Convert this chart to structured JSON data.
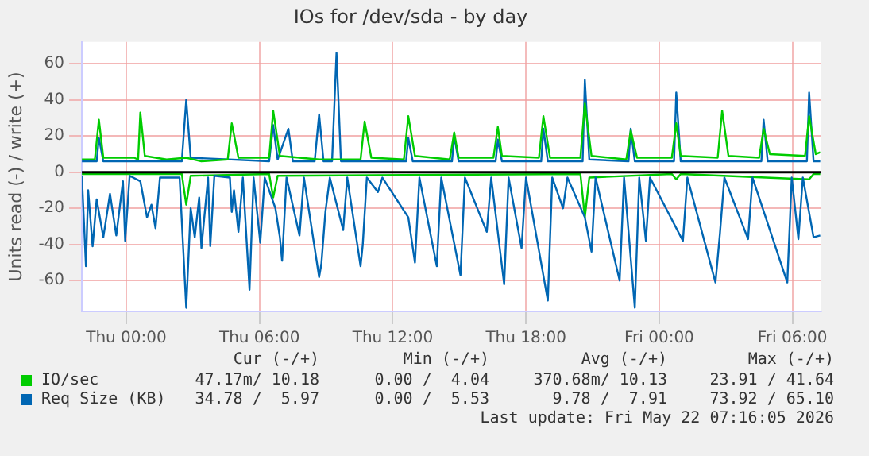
{
  "chart_data": {
    "type": "line",
    "title": "IOs for /dev/sda - by day",
    "ylabel": "Units read (-) / write (+)",
    "xlim": [
      "2026-05-20T22:00",
      "2026-05-22T07:18"
    ],
    "xticks": [
      {
        "value": "2026-05-21T00:00",
        "label": "Thu 00:00"
      },
      {
        "value": "2026-05-21T06:00",
        "label": "Thu 06:00"
      },
      {
        "value": "2026-05-21T12:00",
        "label": "Thu 12:00"
      },
      {
        "value": "2026-05-21T18:00",
        "label": "Thu 18:00"
      },
      {
        "value": "2026-05-22T00:00",
        "label": "Fri 00:00"
      },
      {
        "value": "2026-05-22T06:00",
        "label": "Fri 06:00"
      }
    ],
    "ylim": [
      -77,
      72
    ],
    "yticks": [
      -60,
      -40,
      -20,
      0,
      20,
      40,
      60
    ],
    "grid": true,
    "legend": "bottom",
    "marker": "none",
    "line_style": "solid",
    "ref_lines": [
      {
        "axis": "y",
        "value": 0,
        "color": "#000000"
      }
    ],
    "series": [
      {
        "name": "IO/sec",
        "color": "#00cc00",
        "x": [
          "2026-05-20T22:00",
          "2026-05-20T22:35",
          "2026-05-20T22:46",
          "2026-05-20T22:58",
          "2026-05-21T00:21",
          "2026-05-21T00:32",
          "2026-05-21T00:38",
          "2026-05-21T00:50",
          "2026-05-21T01:49",
          "2026-05-21T02:42",
          "2026-05-21T03:23",
          "2026-05-21T04:34",
          "2026-05-21T04:45",
          "2026-05-21T05:03",
          "2026-05-21T06:26",
          "2026-05-21T06:37",
          "2026-05-21T06:55",
          "2026-05-21T08:41",
          "2026-05-21T10:33",
          "2026-05-21T10:44",
          "2026-05-21T11:02",
          "2026-05-21T12:30",
          "2026-05-21T12:42",
          "2026-05-21T13:00",
          "2026-05-21T14:34",
          "2026-05-21T14:46",
          "2026-05-21T14:58",
          "2026-05-21T16:32",
          "2026-05-21T16:44",
          "2026-05-21T16:55",
          "2026-05-21T18:35",
          "2026-05-21T18:47",
          "2026-05-21T19:05",
          "2026-05-21T20:27",
          "2026-05-21T20:39",
          "2026-05-21T20:57",
          "2026-05-21T22:31",
          "2026-05-21T22:43",
          "2026-05-21T23:00",
          "2026-05-22T00:34",
          "2026-05-22T00:46",
          "2026-05-22T00:58",
          "2026-05-22T02:38",
          "2026-05-22T02:50",
          "2026-05-22T03:07",
          "2026-05-22T04:30",
          "2026-05-22T04:42",
          "2026-05-22T04:59",
          "2026-05-22T06:34",
          "2026-05-22T06:45",
          "2026-05-22T07:03",
          "2026-05-22T07:15"
        ],
        "values": [
          7,
          7,
          29,
          8,
          8,
          7,
          33,
          9,
          7,
          8,
          6,
          7,
          27,
          8,
          8,
          34,
          9,
          7,
          7,
          28,
          8,
          7,
          31,
          9,
          7,
          22,
          8,
          8,
          25,
          9,
          8,
          31,
          8,
          8,
          38,
          9,
          7,
          23,
          8,
          8,
          27,
          9,
          8,
          34,
          9,
          8,
          24,
          10,
          9,
          31,
          10,
          11
        ]
      },
      {
        "name": "Req Size (KB)",
        "color": "#0066b3",
        "x": [
          "2026-05-20T22:00",
          "2026-05-20T22:40",
          "2026-05-20T22:46",
          "2026-05-20T22:58",
          "2026-05-21T02:30",
          "2026-05-21T02:42",
          "2026-05-21T02:54",
          "2026-05-21T06:26",
          "2026-05-21T06:37",
          "2026-05-21T06:49",
          "2026-05-21T07:18",
          "2026-05-21T07:30",
          "2026-05-21T08:29",
          "2026-05-21T08:41",
          "2026-05-21T08:53",
          "2026-05-21T09:16",
          "2026-05-21T09:28",
          "2026-05-21T09:40",
          "2026-05-21T12:36",
          "2026-05-21T12:42",
          "2026-05-21T12:54",
          "2026-05-21T14:40",
          "2026-05-21T14:46",
          "2026-05-21T14:58",
          "2026-05-21T16:38",
          "2026-05-21T16:44",
          "2026-05-21T16:55",
          "2026-05-21T18:41",
          "2026-05-21T18:47",
          "2026-05-21T18:59",
          "2026-05-21T20:33",
          "2026-05-21T20:39",
          "2026-05-21T20:51",
          "2026-05-21T22:37",
          "2026-05-21T22:43",
          "2026-05-21T22:54",
          "2026-05-22T00:40",
          "2026-05-22T00:46",
          "2026-05-22T00:58",
          "2026-05-22T04:36",
          "2026-05-22T04:42",
          "2026-05-22T04:53",
          "2026-05-22T06:39",
          "2026-05-22T06:45",
          "2026-05-22T06:57",
          "2026-05-22T07:15"
        ],
        "values": [
          6,
          6,
          19,
          6,
          6,
          40,
          8,
          6,
          26,
          7,
          24,
          6,
          6,
          32,
          6,
          6,
          66,
          6,
          6,
          19,
          6,
          6,
          20,
          6,
          6,
          18,
          6,
          6,
          24,
          6,
          6,
          51,
          7,
          6,
          24,
          6,
          6,
          44,
          6,
          6,
          29,
          6,
          6,
          44,
          6,
          6
        ]
      },
      {
        "color": "#0066b3",
        "x": [
          "2026-05-20T22:00",
          "2026-05-20T22:11",
          "2026-05-20T22:17",
          "2026-05-20T22:29",
          "2026-05-20T22:40",
          "2026-05-20T22:58",
          "2026-05-20T23:16",
          "2026-05-20T23:33",
          "2026-05-20T23:51",
          "2026-05-20T23:57",
          "2026-05-21T00:09",
          "2026-05-21T00:38",
          "2026-05-21T00:56",
          "2026-05-21T01:08",
          "2026-05-21T01:19",
          "2026-05-21T01:31",
          "2026-05-21T02:24",
          "2026-05-21T02:42",
          "2026-05-21T02:54",
          "2026-05-21T03:05",
          "2026-05-21T03:17",
          "2026-05-21T03:23",
          "2026-05-21T03:41",
          "2026-05-21T03:47",
          "2026-05-21T03:58",
          "2026-05-21T04:40",
          "2026-05-21T04:45",
          "2026-05-21T04:51",
          "2026-05-21T05:03",
          "2026-05-21T05:15",
          "2026-05-21T05:33",
          "2026-05-21T05:44",
          "2026-05-21T06:02",
          "2026-05-21T06:14",
          "2026-05-21T06:43",
          "2026-05-21T06:55",
          "2026-05-21T07:01",
          "2026-05-21T07:13",
          "2026-05-21T07:48",
          "2026-05-21T08:00",
          "2026-05-21T08:41",
          "2026-05-21T08:47",
          "2026-05-21T08:58",
          "2026-05-21T09:10",
          "2026-05-21T09:46",
          "2026-05-21T09:57",
          "2026-05-21T10:33",
          "2026-05-21T10:39",
          "2026-05-21T10:50",
          "2026-05-21T11:20",
          "2026-05-21T11:32",
          "2026-05-21T12:42",
          "2026-05-21T13:00",
          "2026-05-21T13:12",
          "2026-05-21T13:59",
          "2026-05-21T14:11",
          "2026-05-21T15:03",
          "2026-05-21T15:15",
          "2026-05-21T16:14",
          "2026-05-21T16:26",
          "2026-05-21T17:01",
          "2026-05-21T17:13",
          "2026-05-21T17:48",
          "2026-05-21T18:00",
          "2026-05-21T18:59",
          "2026-05-21T19:11",
          "2026-05-21T19:40",
          "2026-05-21T19:52",
          "2026-05-21T20:39",
          "2026-05-21T20:57",
          "2026-05-21T21:08",
          "2026-05-21T22:13",
          "2026-05-21T22:25",
          "2026-05-21T22:54",
          "2026-05-21T23:06",
          "2026-05-21T23:24",
          "2026-05-21T23:35",
          "2026-05-22T01:04",
          "2026-05-22T01:16",
          "2026-05-22T02:32",
          "2026-05-22T02:44",
          "2026-05-22T02:56",
          "2026-05-22T04:00",
          "2026-05-22T04:12",
          "2026-05-22T05:46",
          "2026-05-22T05:58",
          "2026-05-22T06:16",
          "2026-05-22T06:28",
          "2026-05-22T06:57",
          "2026-05-22T07:15"
        ],
        "values": [
          -2,
          -52,
          -10,
          -41,
          -15,
          -36,
          -12,
          -35,
          -5,
          -38,
          -2,
          -5,
          -25,
          -18,
          -31,
          -3,
          -3,
          -75,
          -20,
          -36,
          -14,
          -42,
          -3,
          -41,
          -2,
          -3,
          -22,
          -10,
          -33,
          -3,
          -65,
          -3,
          -39,
          -3,
          -20,
          -36,
          -49,
          -3,
          -35,
          -3,
          -58,
          -51,
          -22,
          -3,
          -32,
          -3,
          -52,
          -40,
          -3,
          -11,
          -3,
          -25,
          -50,
          -3,
          -52,
          -3,
          -57,
          -3,
          -33,
          -3,
          -62,
          -3,
          -42,
          -3,
          -71,
          -3,
          -20,
          -3,
          -25,
          -44,
          -3,
          -60,
          -3,
          -75,
          -3,
          -38,
          -3,
          -38,
          -3,
          -61,
          -34,
          -3,
          -37,
          -3,
          -61,
          -3,
          -37,
          -3,
          -36,
          -35
        ]
      },
      {
        "color": "#00cc00",
        "x": [
          "2026-05-20T22:00",
          "2026-05-21T02:30",
          "2026-05-21T02:42",
          "2026-05-21T02:54",
          "2026-05-21T06:26",
          "2026-05-21T06:37",
          "2026-05-21T06:49",
          "2026-05-21T20:27",
          "2026-05-21T20:39",
          "2026-05-21T20:51",
          "2026-05-22T00:34",
          "2026-05-22T00:46",
          "2026-05-22T00:58",
          "2026-05-22T06:45",
          "2026-05-22T06:57",
          "2026-05-22T07:15"
        ],
        "values": [
          -1,
          -1,
          -18,
          -2,
          -1,
          -14,
          -2,
          -1,
          -25,
          -3,
          -1,
          -4,
          -1,
          -4,
          -1,
          -1
        ]
      }
    ],
    "annotations": [
      "Cur (-/+)",
      "Min (-/+)",
      "Avg (-/+)",
      "Max (-/+)",
      "47.17m/ 10.18",
      "0.00 /  4.04",
      "370.68m/ 10.13",
      "23.91 / 41.64",
      "34.78 /  5.97",
      "0.00 /  5.53",
      "9.78 /  7.91",
      "73.92 / 65.10",
      "Last update: Fri May 22 07:16:05 2026"
    ]
  }
}
